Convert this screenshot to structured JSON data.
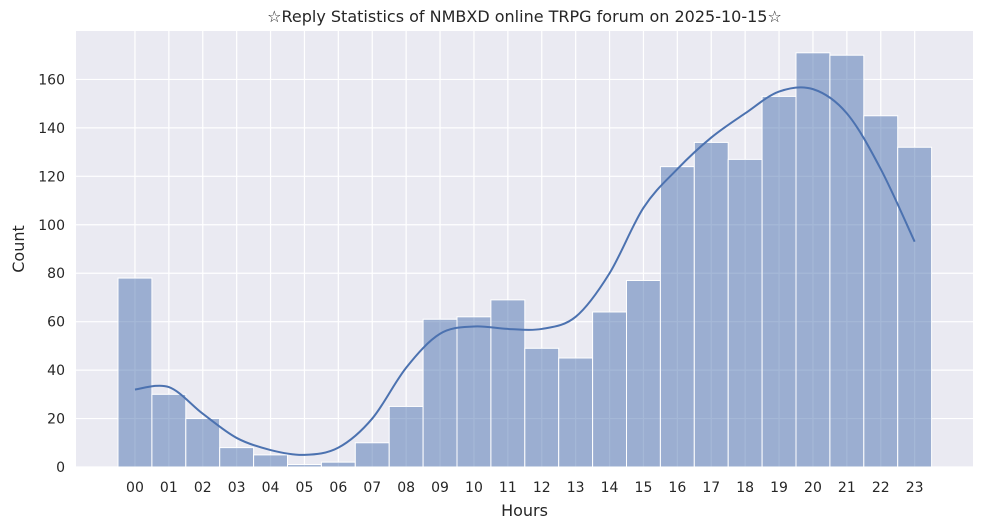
{
  "chart_data": {
    "type": "bar",
    "title": "☆Reply Statistics of NMBXD online TRPG forum on 2025-10-15☆",
    "xlabel": "Hours",
    "ylabel": "Count",
    "categories": [
      "00",
      "01",
      "02",
      "03",
      "04",
      "05",
      "06",
      "07",
      "08",
      "09",
      "10",
      "11",
      "12",
      "13",
      "14",
      "15",
      "16",
      "17",
      "18",
      "19",
      "20",
      "21",
      "22",
      "23"
    ],
    "values": [
      78,
      30,
      20,
      8,
      5,
      1,
      2,
      10,
      25,
      61,
      62,
      69,
      49,
      45,
      64,
      77,
      124,
      134,
      127,
      153,
      171,
      170,
      145,
      132
    ],
    "kde": [
      32,
      33,
      22,
      12,
      7,
      5,
      8,
      20,
      41,
      55,
      58,
      57,
      57,
      62,
      80,
      107,
      123,
      136,
      146,
      155,
      156,
      146,
      123,
      93
    ],
    "ylim": [
      0,
      180
    ],
    "yticks": [
      0,
      20,
      40,
      60,
      80,
      100,
      120,
      140,
      160
    ],
    "grid": true,
    "colors": {
      "background": "#eaeaf2",
      "grid": "#ffffff",
      "bar": "#4c72b0",
      "line": "#4c72b0"
    }
  }
}
